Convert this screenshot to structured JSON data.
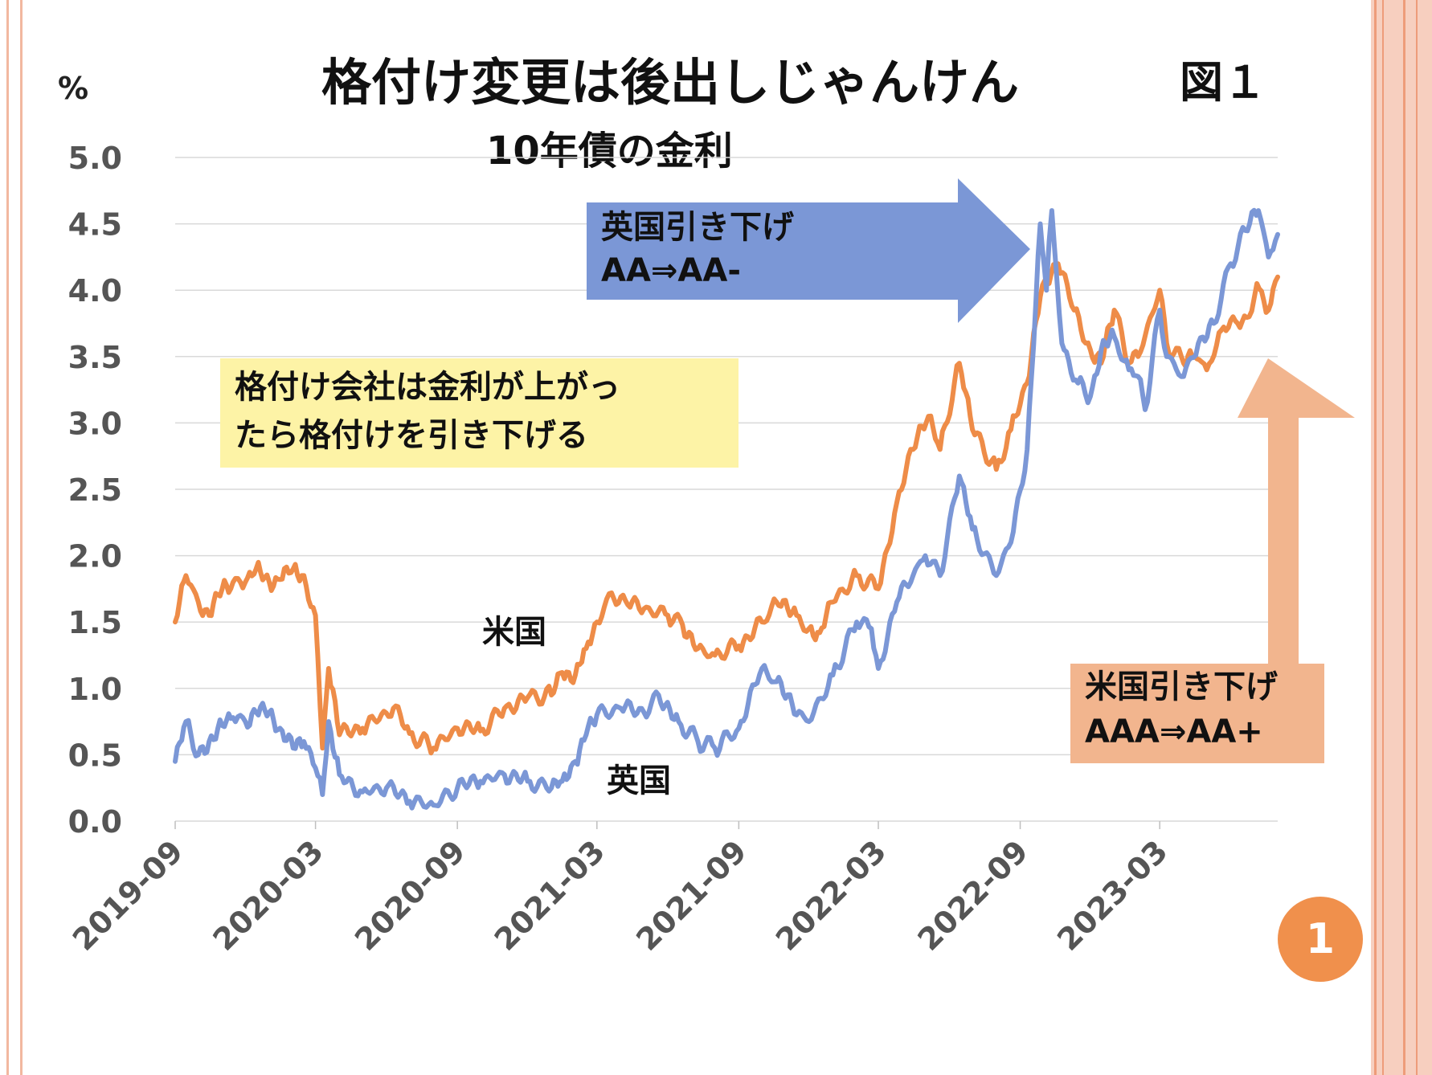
{
  "title": "格付け変更は後出しじゃんけん",
  "figure_label": "図１",
  "subtitle": "10年債の金利",
  "page_number": "1",
  "colors": {
    "us": "#ee8c48",
    "uk": "#7b97d6",
    "uk_arrow": "#7b97d6",
    "us_arrow": "#f2b58e",
    "note_bg": "#fdf3a6"
  },
  "chart_data": {
    "type": "line",
    "unit": "%",
    "ylim": [
      0,
      5
    ],
    "yticks": [
      "0.0",
      "0.5",
      "1.0",
      "1.5",
      "2.0",
      "2.5",
      "3.0",
      "3.5",
      "4.0",
      "4.5",
      "5.0"
    ],
    "xlim": [
      "2019-09",
      "2023-08"
    ],
    "xticks": [
      "2019-09",
      "2020-03",
      "2020-09",
      "2021-03",
      "2021-09",
      "2022-03",
      "2022-09",
      "2023-03"
    ],
    "grid": "horizontal",
    "series": [
      {
        "name": "米国",
        "color": "#ee8c48",
        "points": [
          [
            "2019-09-01",
            1.5
          ],
          [
            "2019-09-15",
            1.85
          ],
          [
            "2019-10-01",
            1.65
          ],
          [
            "2019-10-15",
            1.55
          ],
          [
            "2019-11-01",
            1.75
          ],
          [
            "2019-11-15",
            1.8
          ],
          [
            "2019-12-01",
            1.8
          ],
          [
            "2019-12-15",
            1.9
          ],
          [
            "2020-01-01",
            1.8
          ],
          [
            "2020-01-15",
            1.82
          ],
          [
            "2020-02-01",
            1.9
          ],
          [
            "2020-02-15",
            1.85
          ],
          [
            "2020-03-01",
            1.55
          ],
          [
            "2020-03-10",
            0.55
          ],
          [
            "2020-03-18",
            1.15
          ],
          [
            "2020-04-01",
            0.65
          ],
          [
            "2020-05-01",
            0.7
          ],
          [
            "2020-06-10",
            0.85
          ],
          [
            "2020-07-01",
            0.66
          ],
          [
            "2020-08-01",
            0.55
          ],
          [
            "2020-09-01",
            0.7
          ],
          [
            "2020-10-01",
            0.68
          ],
          [
            "2020-11-01",
            0.85
          ],
          [
            "2020-12-01",
            0.93
          ],
          [
            "2021-01-01",
            0.95
          ],
          [
            "2021-01-15",
            1.12
          ],
          [
            "2021-02-01",
            1.1
          ],
          [
            "2021-02-15",
            1.3
          ],
          [
            "2021-03-01",
            1.5
          ],
          [
            "2021-03-20",
            1.72
          ],
          [
            "2021-04-10",
            1.63
          ],
          [
            "2021-05-01",
            1.6
          ],
          [
            "2021-06-01",
            1.55
          ],
          [
            "2021-06-20",
            1.48
          ],
          [
            "2021-07-10",
            1.3
          ],
          [
            "2021-08-01",
            1.25
          ],
          [
            "2021-09-01",
            1.32
          ],
          [
            "2021-10-01",
            1.5
          ],
          [
            "2021-10-20",
            1.65
          ],
          [
            "2021-11-15",
            1.55
          ],
          [
            "2021-12-01",
            1.45
          ],
          [
            "2021-12-15",
            1.42
          ],
          [
            "2022-01-01",
            1.65
          ],
          [
            "2022-02-01",
            1.85
          ],
          [
            "2022-03-01",
            1.75
          ],
          [
            "2022-03-25",
            2.4
          ],
          [
            "2022-04-15",
            2.8
          ],
          [
            "2022-05-05",
            3.05
          ],
          [
            "2022-05-20",
            2.8
          ],
          [
            "2022-06-14",
            3.45
          ],
          [
            "2022-07-01",
            2.95
          ],
          [
            "2022-08-01",
            2.65
          ],
          [
            "2022-08-20",
            2.95
          ],
          [
            "2022-09-10",
            3.3
          ],
          [
            "2022-09-27",
            3.95
          ],
          [
            "2022-10-20",
            4.2
          ],
          [
            "2022-11-10",
            3.85
          ],
          [
            "2022-12-01",
            3.55
          ],
          [
            "2022-12-15",
            3.45
          ],
          [
            "2023-01-01",
            3.85
          ],
          [
            "2023-01-20",
            3.45
          ],
          [
            "2023-02-01",
            3.5
          ],
          [
            "2023-03-01",
            4.0
          ],
          [
            "2023-03-10",
            3.6
          ],
          [
            "2023-04-01",
            3.45
          ],
          [
            "2023-04-15",
            3.5
          ],
          [
            "2023-05-01",
            3.4
          ],
          [
            "2023-05-20",
            3.7
          ],
          [
            "2023-06-10",
            3.75
          ],
          [
            "2023-06-25",
            3.8
          ],
          [
            "2023-07-05",
            4.05
          ],
          [
            "2023-07-20",
            3.85
          ],
          [
            "2023-08-01",
            4.1
          ]
        ]
      },
      {
        "name": "英国",
        "color": "#7b97d6",
        "points": [
          [
            "2019-09-01",
            0.45
          ],
          [
            "2019-09-15",
            0.75
          ],
          [
            "2019-10-01",
            0.5
          ],
          [
            "2019-10-15",
            0.6
          ],
          [
            "2019-11-01",
            0.72
          ],
          [
            "2019-11-15",
            0.78
          ],
          [
            "2019-12-01",
            0.75
          ],
          [
            "2019-12-15",
            0.82
          ],
          [
            "2020-01-01",
            0.82
          ],
          [
            "2020-01-15",
            0.7
          ],
          [
            "2020-02-01",
            0.55
          ],
          [
            "2020-02-15",
            0.6
          ],
          [
            "2020-03-01",
            0.4
          ],
          [
            "2020-03-10",
            0.2
          ],
          [
            "2020-03-18",
            0.75
          ],
          [
            "2020-04-01",
            0.35
          ],
          [
            "2020-05-01",
            0.22
          ],
          [
            "2020-06-01",
            0.25
          ],
          [
            "2020-07-01",
            0.15
          ],
          [
            "2020-08-01",
            0.12
          ],
          [
            "2020-09-01",
            0.25
          ],
          [
            "2020-10-01",
            0.3
          ],
          [
            "2020-11-01",
            0.35
          ],
          [
            "2020-12-01",
            0.3
          ],
          [
            "2021-01-01",
            0.25
          ],
          [
            "2021-01-15",
            0.3
          ],
          [
            "2021-02-01",
            0.45
          ],
          [
            "2021-02-15",
            0.65
          ],
          [
            "2021-03-01",
            0.8
          ],
          [
            "2021-04-01",
            0.85
          ],
          [
            "2021-05-01",
            0.82
          ],
          [
            "2021-05-20",
            0.95
          ],
          [
            "2021-06-15",
            0.75
          ],
          [
            "2021-07-10",
            0.6
          ],
          [
            "2021-08-01",
            0.55
          ],
          [
            "2021-09-01",
            0.7
          ],
          [
            "2021-10-01",
            1.15
          ],
          [
            "2021-10-20",
            1.05
          ],
          [
            "2021-11-15",
            0.8
          ],
          [
            "2021-12-01",
            0.75
          ],
          [
            "2022-01-01",
            1.1
          ],
          [
            "2022-02-01",
            1.5
          ],
          [
            "2022-02-20",
            1.45
          ],
          [
            "2022-03-01",
            1.15
          ],
          [
            "2022-03-25",
            1.65
          ],
          [
            "2022-04-15",
            1.85
          ],
          [
            "2022-05-01",
            2.0
          ],
          [
            "2022-05-20",
            1.85
          ],
          [
            "2022-06-14",
            2.6
          ],
          [
            "2022-07-01",
            2.2
          ],
          [
            "2022-08-01",
            1.85
          ],
          [
            "2022-08-20",
            2.1
          ],
          [
            "2022-09-10",
            2.8
          ],
          [
            "2022-09-27",
            4.5
          ],
          [
            "2022-10-05",
            4.0
          ],
          [
            "2022-10-12",
            4.6
          ],
          [
            "2022-10-25",
            3.6
          ],
          [
            "2022-11-15",
            3.3
          ],
          [
            "2022-12-01",
            3.2
          ],
          [
            "2022-12-15",
            3.55
          ],
          [
            "2023-01-01",
            3.65
          ],
          [
            "2023-01-20",
            3.4
          ],
          [
            "2023-02-01",
            3.35
          ],
          [
            "2023-02-10",
            3.1
          ],
          [
            "2023-03-01",
            3.85
          ],
          [
            "2023-03-10",
            3.5
          ],
          [
            "2023-04-01",
            3.35
          ],
          [
            "2023-04-20",
            3.6
          ],
          [
            "2023-05-10",
            3.75
          ],
          [
            "2023-06-01",
            4.2
          ],
          [
            "2023-06-20",
            4.45
          ],
          [
            "2023-07-07",
            4.6
          ],
          [
            "2023-07-20",
            4.25
          ],
          [
            "2023-08-01",
            4.42
          ]
        ]
      }
    ],
    "annotations": {
      "uk_downgrade": [
        "英国引き下げ",
        "AA⇒AA-"
      ],
      "us_downgrade": [
        "米国引き下げ",
        "AAA⇒AA+"
      ],
      "note": [
        "格付け会社は金利が上がっ",
        "たら格付けを引き下げる"
      ],
      "label_us": "米国",
      "label_uk": "英国"
    }
  }
}
